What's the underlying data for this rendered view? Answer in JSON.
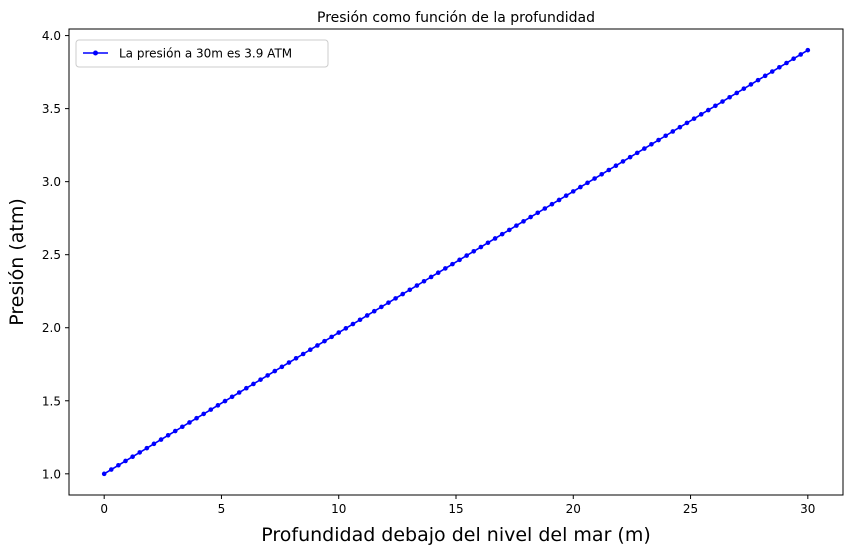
{
  "chart_data": {
    "type": "line",
    "title": "Presión como función de la profundidad",
    "xlabel": "Profundidad debajo del nivel del mar (m)",
    "ylabel": "Presión (atm)",
    "xlim": [
      -1.5,
      31.5
    ],
    "ylim": [
      0.855,
      4.045
    ],
    "xticks": [
      0,
      5,
      10,
      15,
      20,
      25,
      30
    ],
    "xtick_labels": [
      "0",
      "5",
      "10",
      "15",
      "20",
      "25",
      "30"
    ],
    "yticks": [
      1.0,
      1.5,
      2.0,
      2.5,
      3.0,
      3.5,
      4.0
    ],
    "ytick_labels": [
      "1.0",
      "1.5",
      "2.0",
      "2.5",
      "3.0",
      "3.5",
      "4.0"
    ],
    "grid": false,
    "legend_position": "top-left",
    "series": [
      {
        "name": "La presión a 30m es 3.9 ATM",
        "color": "#0000ff",
        "marker": "dot",
        "x_start": 0,
        "x_end": 30,
        "num_points": 100,
        "y_intercept": 1.0,
        "slope_atm_per_m": 0.09667
      }
    ]
  }
}
